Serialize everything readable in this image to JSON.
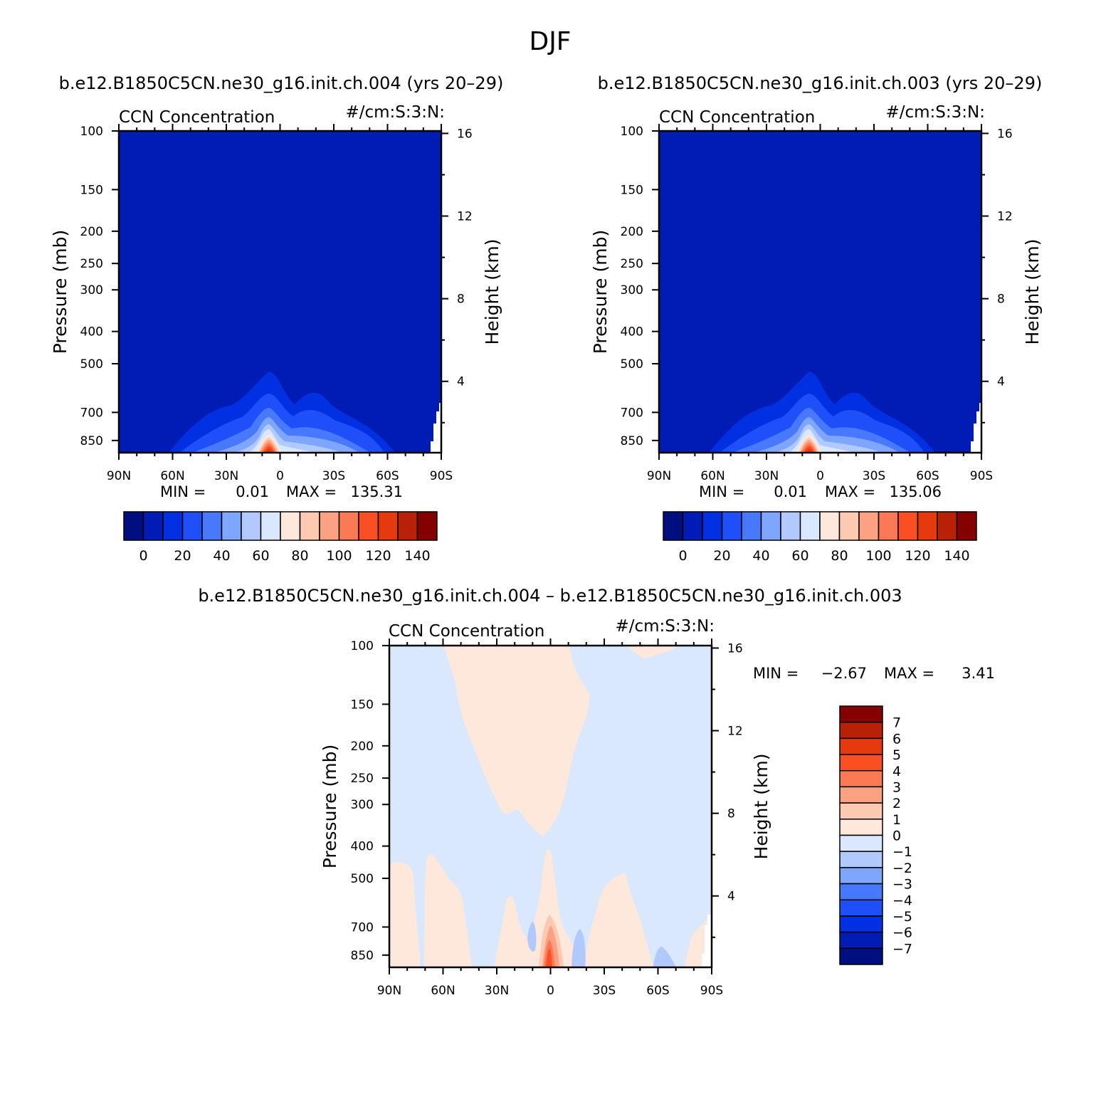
{
  "title": "DJF",
  "panels": [
    {
      "id": "case1",
      "case_title": "b.e12.B1850C5CN.ne30_g16.init.ch.004 (yrs 20–29)",
      "left_title": "CCN Concentration",
      "right_title": "#/cm:S:3:N:",
      "ylabel_left": "Pressure (mb)",
      "ylabel_right": "Height (km)",
      "min_label": "MIN =",
      "min_value": "0.01",
      "max_label": "MAX =",
      "max_value": "135.31"
    },
    {
      "id": "case2",
      "case_title": "b.e12.B1850C5CN.ne30_g16.init.ch.003 (yrs 20–29)",
      "left_title": "CCN Concentration",
      "right_title": "#/cm:S:3:N:",
      "ylabel_left": "Pressure (mb)",
      "ylabel_right": "Height (km)",
      "min_label": "MIN =",
      "min_value": "0.01",
      "max_label": "MAX =",
      "max_value": "135.06"
    },
    {
      "id": "diff",
      "case_title": "b.e12.B1850C5CN.ne30_g16.init.ch.004 – b.e12.B1850C5CN.ne30_g16.init.ch.003",
      "left_title": "CCN Concentration",
      "right_title": "#/cm:S:3:N:",
      "ylabel_left": "Pressure (mb)",
      "ylabel_right": "Height (km)",
      "min_label": "MIN =",
      "min_value": "−2.67",
      "max_label": "MAX =",
      "max_value": "3.41"
    }
  ],
  "colors": {
    "abs_scale": [
      "#000e7f",
      "#001cb5",
      "#0030e2",
      "#1f4ff9",
      "#4878fb",
      "#7ea6fc",
      "#b1c9fd",
      "#d9e8fd",
      "#fee8dc",
      "#fdc9b0",
      "#fca282",
      "#fb7a54",
      "#fa4e23",
      "#e6390d",
      "#b92106",
      "#850000"
    ],
    "diff_scale": [
      "#000e7f",
      "#001cb5",
      "#0030e2",
      "#1f4ff9",
      "#4878fb",
      "#7ea6fc",
      "#b1c9fd",
      "#d9e8fd",
      "#fee8dc",
      "#fdc9b0",
      "#fca282",
      "#fb7a54",
      "#fa4e23",
      "#e6390d",
      "#b92106",
      "#850000"
    ]
  },
  "chart_data": [
    {
      "type": "heatmap",
      "panel": "case1",
      "x_ticks": [
        "90N",
        "60N",
        "30N",
        "0",
        "30S",
        "60S",
        "90S"
      ],
      "x_tick_values": [
        -90,
        -60,
        -30,
        0,
        30,
        60,
        90
      ],
      "p_ticks": [
        "100",
        "150",
        "200",
        "250",
        "300",
        "400",
        "500",
        "700",
        "850"
      ],
      "p_tick_values": [
        100,
        150,
        200,
        250,
        300,
        400,
        500,
        700,
        850
      ],
      "p_range": [
        100,
        925
      ],
      "z_ticks": [
        "4",
        "8",
        "12",
        "16"
      ],
      "z_tick_values": [
        4,
        8,
        12,
        16
      ],
      "colorbar_labels": [
        "0",
        "20",
        "40",
        "60",
        "80",
        "100",
        "120",
        "140"
      ],
      "colorbar_levels": [
        0,
        10,
        20,
        30,
        40,
        50,
        60,
        70,
        80,
        90,
        100,
        110,
        120,
        130,
        140
      ],
      "min": 0.01,
      "max": 135.31
    },
    {
      "type": "heatmap",
      "panel": "case2",
      "x_ticks": [
        "90N",
        "60N",
        "30N",
        "0",
        "30S",
        "60S",
        "90S"
      ],
      "x_tick_values": [
        -90,
        -60,
        -30,
        0,
        30,
        60,
        90
      ],
      "p_ticks": [
        "100",
        "150",
        "200",
        "250",
        "300",
        "400",
        "500",
        "700",
        "850"
      ],
      "p_tick_values": [
        100,
        150,
        200,
        250,
        300,
        400,
        500,
        700,
        850
      ],
      "p_range": [
        100,
        925
      ],
      "z_ticks": [
        "4",
        "8",
        "12",
        "16"
      ],
      "z_tick_values": [
        4,
        8,
        12,
        16
      ],
      "colorbar_labels": [
        "0",
        "20",
        "40",
        "60",
        "80",
        "100",
        "120",
        "140"
      ],
      "colorbar_levels": [
        0,
        10,
        20,
        30,
        40,
        50,
        60,
        70,
        80,
        90,
        100,
        110,
        120,
        130,
        140
      ],
      "min": 0.01,
      "max": 135.06
    },
    {
      "type": "heatmap",
      "panel": "diff",
      "x_ticks": [
        "90N",
        "60N",
        "30N",
        "0",
        "30S",
        "60S",
        "90S"
      ],
      "x_tick_values": [
        -90,
        -60,
        -30,
        0,
        30,
        60,
        90
      ],
      "p_ticks": [
        "100",
        "150",
        "200",
        "250",
        "300",
        "400",
        "500",
        "700",
        "850"
      ],
      "p_tick_values": [
        100,
        150,
        200,
        250,
        300,
        400,
        500,
        700,
        850
      ],
      "p_range": [
        100,
        925
      ],
      "z_ticks": [
        "4",
        "8",
        "12",
        "16"
      ],
      "z_tick_values": [
        4,
        8,
        12,
        16
      ],
      "colorbar_labels": [
        "7",
        "6",
        "5",
        "4",
        "3",
        "2",
        "1",
        "0",
        "−1",
        "−2",
        "−3",
        "−4",
        "−5",
        "−6",
        "−7"
      ],
      "colorbar_levels": [
        7,
        6,
        5,
        4,
        3,
        2,
        1,
        0,
        -1,
        -2,
        -3,
        -4,
        -5,
        -6,
        -7
      ],
      "min": -2.67,
      "max": 3.41
    }
  ]
}
